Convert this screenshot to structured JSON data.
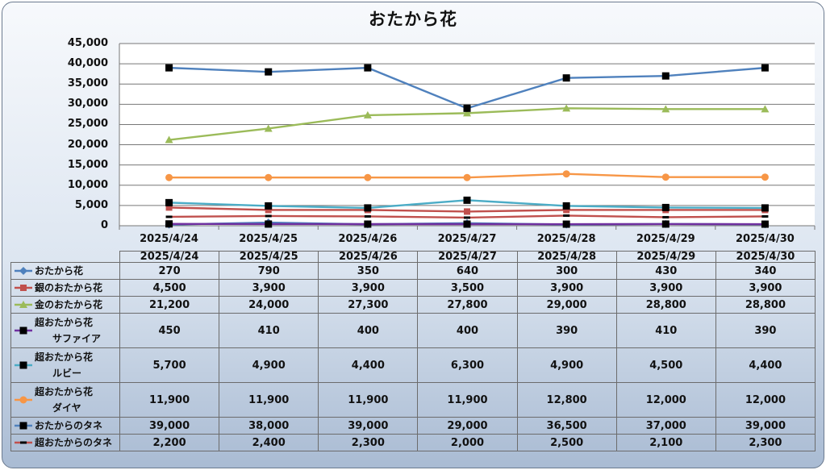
{
  "chart_data": {
    "type": "line",
    "title": "おたから花",
    "categories": [
      "2025/4/24",
      "2025/4/25",
      "2025/4/26",
      "2025/4/27",
      "2025/4/28",
      "2025/4/29",
      "2025/4/30"
    ],
    "ylim": [
      0,
      45000
    ],
    "yticks": [
      "0",
      "5,000",
      "10,000",
      "15,000",
      "20,000",
      "25,000",
      "30,000",
      "35,000",
      "40,000",
      "45,000"
    ],
    "grid": true,
    "legend": "data-table",
    "series": [
      {
        "name": "おたから花",
        "name_lines": [
          "おたから花"
        ],
        "values": [
          270,
          790,
          350,
          640,
          300,
          430,
          340
        ],
        "labels": [
          "270",
          "790",
          "350",
          "640",
          "300",
          "430",
          "340"
        ],
        "color": "#4f81bd",
        "marker": "diamond"
      },
      {
        "name": "銀のおたから花",
        "name_lines": [
          "銀のおたから花"
        ],
        "values": [
          4500,
          3900,
          3900,
          3500,
          3900,
          3900,
          3900
        ],
        "labels": [
          "4,500",
          "3,900",
          "3,900",
          "3,500",
          "3,900",
          "3,900",
          "3,900"
        ],
        "color": "#c0504d",
        "marker": "square"
      },
      {
        "name": "金のおたから花",
        "name_lines": [
          "金のおたから花"
        ],
        "values": [
          21200,
          24000,
          27300,
          27800,
          29000,
          28800,
          28800
        ],
        "labels": [
          "21,200",
          "24,000",
          "27,300",
          "27,800",
          "29,000",
          "28,800",
          "28,800"
        ],
        "color": "#9bbb59",
        "marker": "triangle"
      },
      {
        "name": "超おたから花サファイア",
        "name_lines": [
          "超おたから花",
          "サファイア"
        ],
        "values": [
          450,
          410,
          400,
          400,
          390,
          410,
          390
        ],
        "labels": [
          "450",
          "410",
          "400",
          "400",
          "390",
          "410",
          "390"
        ],
        "color": "#7030a0",
        "marker": "square-black"
      },
      {
        "name": "超おたから花ルビー",
        "name_lines": [
          "超おたから花",
          "ルビー"
        ],
        "values": [
          5700,
          4900,
          4400,
          6300,
          4900,
          4500,
          4400
        ],
        "labels": [
          "5,700",
          "4,900",
          "4,400",
          "6,300",
          "4,900",
          "4,500",
          "4,400"
        ],
        "color": "#4bacc6",
        "marker": "square-black"
      },
      {
        "name": "超おたから花ダイヤ",
        "name_lines": [
          "超おたから花",
          "ダイヤ"
        ],
        "values": [
          11900,
          11900,
          11900,
          11900,
          12800,
          12000,
          12000
        ],
        "labels": [
          "11,900",
          "11,900",
          "11,900",
          "11,900",
          "12,800",
          "12,000",
          "12,000"
        ],
        "color": "#f79646",
        "marker": "circle"
      },
      {
        "name": "おたからのタネ",
        "name_lines": [
          "おたからのタネ"
        ],
        "values": [
          39000,
          38000,
          39000,
          29000,
          36500,
          37000,
          39000
        ],
        "labels": [
          "39,000",
          "38,000",
          "39,000",
          "29,000",
          "36,500",
          "37,000",
          "39,000"
        ],
        "color": "#4f81bd",
        "marker": "square-black"
      },
      {
        "name": "超おたからのタネ",
        "name_lines": [
          "超おたからのタネ"
        ],
        "values": [
          2200,
          2400,
          2300,
          2000,
          2500,
          2100,
          2300
        ],
        "labels": [
          "2,200",
          "2,400",
          "2,300",
          "2,000",
          "2,500",
          "2,100",
          "2,300"
        ],
        "color": "#c0504d",
        "marker": "dash"
      }
    ]
  }
}
